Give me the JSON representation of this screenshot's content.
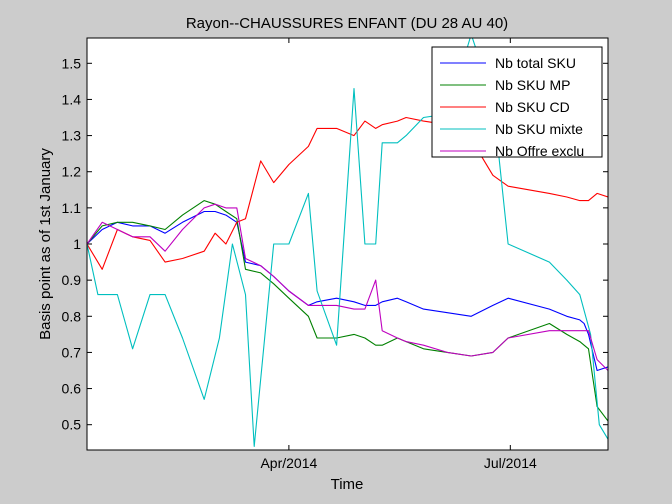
{
  "chart_data": {
    "type": "line",
    "title": "Rayon--CHAUSSURES ENFANT (DU 28 AU 40)",
    "xlabel": "Time",
    "ylabel": "Basis point as of 1st January",
    "xlim": [
      0,
      24
    ],
    "ylim": [
      0.43,
      1.57
    ],
    "yticks": [
      0.5,
      0.6,
      0.7,
      0.8,
      0.9,
      1.0,
      1.1,
      1.2,
      1.3,
      1.4,
      1.5
    ],
    "ytick_labels": [
      "0.5",
      "0.6",
      "0.7",
      "0.8",
      "0.9",
      "1",
      "1.1",
      "1.2",
      "1.3",
      "1.4",
      "1.5"
    ],
    "xticks": [
      9.3,
      19.5
    ],
    "xtick_labels": [
      "Apr/2014",
      "Jul/2014"
    ],
    "legend_position": "top-right",
    "series": [
      {
        "name": "Nb total SKU",
        "color": "#0000ff",
        "x": [
          0,
          0.7,
          1.4,
          2.1,
          2.9,
          3.6,
          4.4,
          5.4,
          5.9,
          6.4,
          6.9,
          7.3,
          8.0,
          8.6,
          9.3,
          10.2,
          10.6,
          11.5,
          12.3,
          12.8,
          13.3,
          13.6,
          14.3,
          14.7,
          15.5,
          16.6,
          17.7,
          18.7,
          19.4,
          21.3,
          22.1,
          22.7,
          22.9,
          23.1,
          23.5,
          24.0
        ],
        "values": [
          1.0,
          1.04,
          1.06,
          1.05,
          1.05,
          1.03,
          1.06,
          1.09,
          1.09,
          1.08,
          1.06,
          0.95,
          0.94,
          0.91,
          0.87,
          0.83,
          0.84,
          0.85,
          0.84,
          0.83,
          0.83,
          0.84,
          0.85,
          0.84,
          0.82,
          0.81,
          0.8,
          0.83,
          0.85,
          0.82,
          0.8,
          0.79,
          0.78,
          0.75,
          0.65,
          0.66
        ]
      },
      {
        "name": "Nb SKU MP",
        "color": "#008000",
        "x": [
          0,
          0.7,
          1.4,
          2.1,
          2.9,
          3.6,
          4.4,
          5.4,
          5.9,
          6.4,
          6.9,
          7.3,
          8.0,
          8.6,
          9.3,
          10.2,
          10.6,
          11.5,
          12.3,
          12.8,
          13.3,
          13.6,
          14.3,
          14.7,
          15.5,
          16.6,
          17.7,
          18.7,
          19.4,
          21.3,
          22.1,
          22.7,
          22.9,
          23.1,
          23.5,
          24.0
        ],
        "values": [
          1.0,
          1.05,
          1.06,
          1.06,
          1.05,
          1.04,
          1.08,
          1.12,
          1.11,
          1.09,
          1.07,
          0.93,
          0.92,
          0.89,
          0.85,
          0.8,
          0.74,
          0.74,
          0.75,
          0.74,
          0.72,
          0.72,
          0.74,
          0.73,
          0.71,
          0.7,
          0.69,
          0.7,
          0.74,
          0.78,
          0.75,
          0.73,
          0.72,
          0.71,
          0.55,
          0.51
        ]
      },
      {
        "name": "Nb SKU CD",
        "color": "#ff0000",
        "x": [
          0,
          0.7,
          1.4,
          2.1,
          2.9,
          3.6,
          4.4,
          5.4,
          5.9,
          6.4,
          6.9,
          7.3,
          8.0,
          8.6,
          9.3,
          10.2,
          10.6,
          11.5,
          12.3,
          12.8,
          13.3,
          13.6,
          14.3,
          14.7,
          15.5,
          16.6,
          17.7,
          18.7,
          19.4,
          21.3,
          22.1,
          22.7,
          22.9,
          23.1,
          23.5,
          24.0
        ],
        "values": [
          1.0,
          0.93,
          1.04,
          1.02,
          1.01,
          0.95,
          0.96,
          0.98,
          1.03,
          1.0,
          1.06,
          1.07,
          1.23,
          1.17,
          1.22,
          1.27,
          1.32,
          1.32,
          1.3,
          1.34,
          1.32,
          1.33,
          1.34,
          1.35,
          1.34,
          1.33,
          1.29,
          1.19,
          1.16,
          1.14,
          1.13,
          1.12,
          1.12,
          1.12,
          1.14,
          1.13
        ]
      },
      {
        "name": "Nb SKU mixte",
        "color": "#00bfbf",
        "x": [
          0,
          0.5,
          1.4,
          2.1,
          2.9,
          3.6,
          4.4,
          5.4,
          6.1,
          6.7,
          7.3,
          7.7,
          8.2,
          8.6,
          9.3,
          10.2,
          10.6,
          11.5,
          12.3,
          12.8,
          13.3,
          13.6,
          14.3,
          14.7,
          15.5,
          16.6,
          17.7,
          18.7,
          19.4,
          21.3,
          22.1,
          22.7,
          23.2,
          23.6,
          24.0
        ],
        "values": [
          1.0,
          0.86,
          0.86,
          0.71,
          0.86,
          0.86,
          0.74,
          0.57,
          0.74,
          1.0,
          0.86,
          0.44,
          0.75,
          1.0,
          1.0,
          1.14,
          0.87,
          0.72,
          1.43,
          1.0,
          1.0,
          1.28,
          1.28,
          1.3,
          1.35,
          1.36,
          1.58,
          1.4,
          1.0,
          0.95,
          0.9,
          0.86,
          0.75,
          0.5,
          0.46
        ]
      },
      {
        "name": "Nb Offre exclu",
        "color": "#bf00bf",
        "x": [
          0,
          0.7,
          1.4,
          2.1,
          2.9,
          3.6,
          4.4,
          5.4,
          5.9,
          6.4,
          6.9,
          7.3,
          8.0,
          8.6,
          9.3,
          10.2,
          10.6,
          11.5,
          12.3,
          12.8,
          13.3,
          13.6,
          14.3,
          14.7,
          15.5,
          16.6,
          17.7,
          18.7,
          19.4,
          21.3,
          22.1,
          22.7,
          22.9,
          23.1,
          23.5,
          24.0
        ],
        "values": [
          1.0,
          1.06,
          1.04,
          1.02,
          1.02,
          0.98,
          1.04,
          1.1,
          1.11,
          1.1,
          1.1,
          0.96,
          0.94,
          0.91,
          0.87,
          0.83,
          0.83,
          0.83,
          0.82,
          0.82,
          0.9,
          0.76,
          0.74,
          0.73,
          0.72,
          0.7,
          0.69,
          0.7,
          0.74,
          0.76,
          0.76,
          0.76,
          0.76,
          0.76,
          0.68,
          0.65
        ]
      }
    ]
  }
}
